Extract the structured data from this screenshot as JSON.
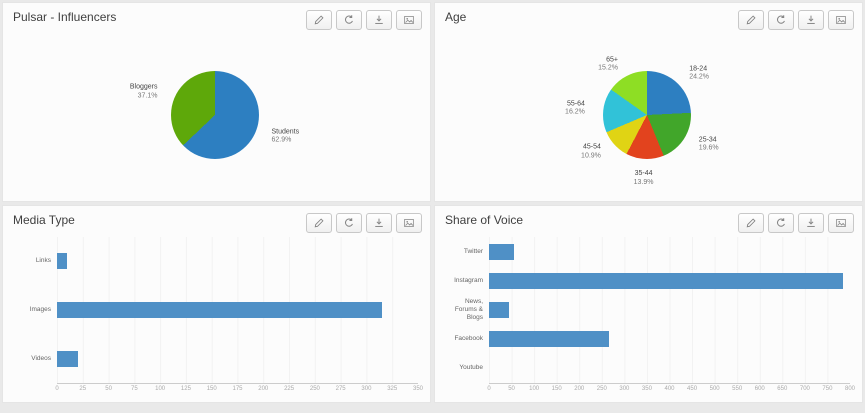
{
  "app": {
    "background": "#e9e9e9",
    "panel_background": "#fcfcfc",
    "bar_accent": "#4f90c6"
  },
  "panels": [
    {
      "id": "influencers",
      "title": "Pulsar - Influencers"
    },
    {
      "id": "age",
      "title": "Age"
    },
    {
      "id": "media_type",
      "title": "Media Type"
    },
    {
      "id": "share_of_voice",
      "title": "Share of Voice"
    }
  ],
  "toolbar": {
    "buttons": [
      {
        "id": "edit",
        "icon": "pencil-icon"
      },
      {
        "id": "refresh",
        "icon": "refresh-icon"
      },
      {
        "id": "download",
        "icon": "download-icon"
      },
      {
        "id": "export-image",
        "icon": "image-icon"
      }
    ]
  },
  "chart_data": [
    {
      "id": "influencers",
      "type": "pie",
      "title": "Pulsar - Influencers",
      "labels_position": "outside",
      "legend": "none",
      "value_suffix": "%",
      "slices": [
        {
          "label": "Students",
          "value": 62.9,
          "color": "#2d7fc1"
        },
        {
          "label": "Bloggers",
          "value": 37.1,
          "color": "#5ea80a"
        }
      ]
    },
    {
      "id": "age",
      "type": "pie",
      "title": "Age",
      "labels_position": "outside",
      "legend": "none",
      "value_suffix": "%",
      "slices": [
        {
          "label": "18-24",
          "value": 24.2,
          "color": "#2d7fc1"
        },
        {
          "label": "25-34",
          "value": 19.6,
          "color": "#41a62a"
        },
        {
          "label": "35-44",
          "value": 13.9,
          "color": "#e2431e"
        },
        {
          "label": "45-54",
          "value": 10.9,
          "color": "#e0d414"
        },
        {
          "label": "55-64",
          "value": 16.2,
          "color": "#31c2d8"
        },
        {
          "label": "65+",
          "value": 15.2,
          "color": "#8ede24"
        }
      ]
    },
    {
      "id": "media_type",
      "type": "bar",
      "orientation": "horizontal",
      "title": "Media Type",
      "categories": [
        "Links",
        "Images",
        "Videos"
      ],
      "values": [
        10,
        315,
        20
      ],
      "xlim": [
        0,
        350
      ],
      "xticks": [
        0,
        25,
        50,
        75,
        100,
        125,
        150,
        175,
        200,
        225,
        250,
        275,
        300,
        325,
        350
      ],
      "bar_color": "#4f90c6",
      "grid": true,
      "legend": "none"
    },
    {
      "id": "share_of_voice",
      "type": "bar",
      "orientation": "horizontal",
      "title": "Share of Voice",
      "categories": [
        "Twitter",
        "Instagram",
        "News, Forums & Blogs",
        "Facebook",
        "Youtube"
      ],
      "values": [
        55,
        785,
        45,
        265,
        0
      ],
      "xlim": [
        0,
        800
      ],
      "xticks": [
        0,
        50,
        100,
        150,
        200,
        250,
        300,
        350,
        400,
        450,
        500,
        550,
        600,
        650,
        700,
        750,
        800
      ],
      "bar_color": "#4f90c6",
      "grid": true,
      "legend": "none"
    }
  ]
}
